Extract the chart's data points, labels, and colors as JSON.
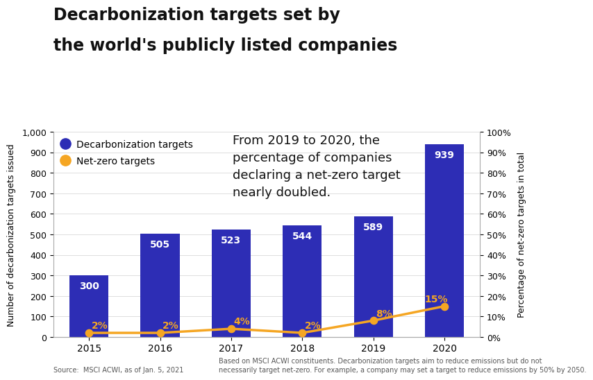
{
  "title_line1": "Decarbonization targets set by",
  "title_line2": "the world's publicly listed companies",
  "years": [
    "2015",
    "2016",
    "2017",
    "2018",
    "2019",
    "2020"
  ],
  "bar_values": [
    300,
    505,
    523,
    544,
    589,
    939
  ],
  "net_zero_pct": [
    2,
    2,
    4,
    2,
    8,
    15
  ],
  "bar_color": "#2d2db5",
  "bar_label_color": "#ffffff",
  "line_color": "#f5a623",
  "dot_color": "#f5a623",
  "pct_label_color": "#f5a623",
  "left_ylabel": "Number of decarbonization targets issued",
  "right_ylabel": "Percentage of net-zero targets in total",
  "left_ylim": [
    0,
    1000
  ],
  "right_ylim": [
    0,
    100
  ],
  "left_yticks": [
    0,
    100,
    200,
    300,
    400,
    500,
    600,
    700,
    800,
    900,
    1000
  ],
  "right_yticks": [
    0,
    10,
    20,
    30,
    40,
    50,
    60,
    70,
    80,
    90,
    100
  ],
  "legend_bar_label": "Decarbonization targets",
  "legend_line_label": "Net-zero targets",
  "annotation": "From 2019 to 2020, the\npercentage of companies\ndeclaring a net-zero target\nnearly doubled.",
  "source_text": "Source:  MSCI ACWI, as of Jan. 5, 2021",
  "note_text": "Based on MSCI ACWI constituents. Decarbonization targets aim to reduce emissions but do not\nnecessarily target net-zero. For example, a company may set a target to reduce emissions by 50% by 2050.",
  "bg_color": "#ffffff",
  "grid_color": "#dddddd",
  "title_fontsize": 17,
  "axis_label_fontsize": 9,
  "tick_fontsize": 9,
  "bar_label_fontsize": 10,
  "pct_label_fontsize": 10,
  "legend_fontsize": 10,
  "annotation_fontsize": 13,
  "footer_fontsize": 7
}
